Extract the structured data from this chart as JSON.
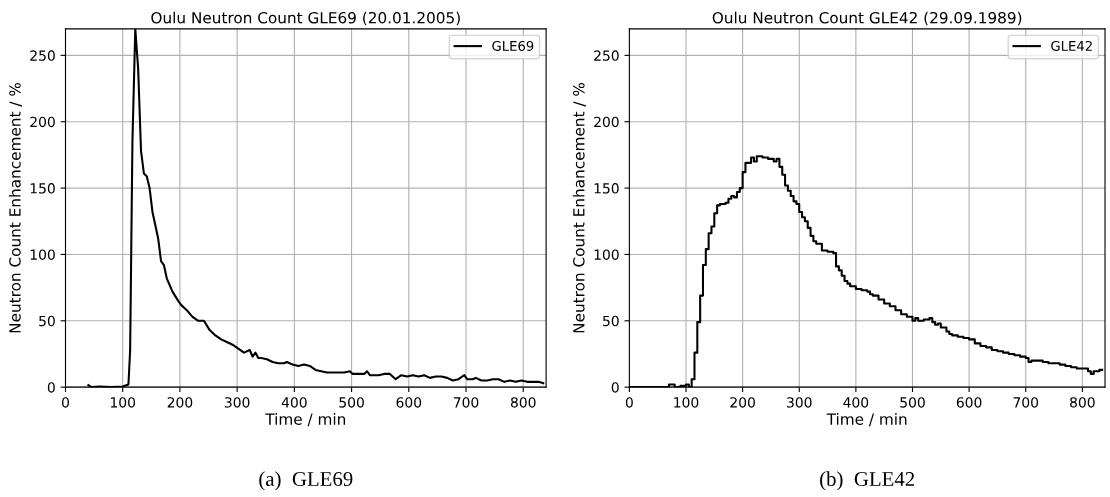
{
  "chart_data": [
    {
      "type": "line",
      "title": "Oulu Neutron Count GLE69 (20.01.2005)",
      "xlabel": "Time / min",
      "ylabel": "Neutron Count Enhancement / %",
      "xlim": [
        0,
        840
      ],
      "ylim": [
        0,
        270
      ],
      "xticks": [
        0,
        100,
        200,
        300,
        400,
        500,
        600,
        700,
        800
      ],
      "yticks": [
        0,
        50,
        100,
        150,
        200,
        250
      ],
      "grid": true,
      "legend": "top right",
      "annotations": [
        "(a)  GLE69"
      ],
      "series": [
        {
          "name": "GLE69",
          "color": "#000000",
          "x": [
            40,
            45,
            60,
            80,
            100,
            110,
            113,
            117,
            122,
            127,
            132,
            137,
            142,
            147,
            152,
            162,
            167,
            172,
            177,
            187,
            197,
            202,
            212,
            222,
            232,
            242,
            252,
            262,
            272,
            282,
            292,
            302,
            312,
            322,
            327,
            332,
            337,
            342,
            352,
            362,
            372,
            382,
            387,
            397,
            407,
            417,
            427,
            437,
            447,
            457,
            467,
            477,
            487,
            497,
            502,
            512,
            522,
            527,
            532,
            547,
            557,
            567,
            577,
            587,
            597,
            607,
            617,
            627,
            637,
            647,
            657,
            667,
            677,
            687,
            697,
            702,
            712,
            717,
            727,
            737,
            747,
            757,
            767,
            777,
            787,
            797,
            807,
            817,
            827,
            835
          ],
          "values": [
            1.5,
            0,
            0.5,
            0,
            0.5,
            2,
            28,
            185,
            270,
            240,
            178,
            161,
            159,
            150,
            132,
            112,
            95,
            92,
            82,
            72,
            65,
            62,
            58,
            53,
            50,
            50,
            43,
            39,
            36,
            34,
            32,
            29,
            26,
            28,
            23,
            26,
            22,
            22,
            21,
            19,
            18,
            18,
            19,
            17,
            16,
            17,
            16,
            13,
            12,
            11,
            11,
            11,
            11,
            12,
            10,
            10,
            10,
            12,
            9,
            9,
            10,
            10,
            6,
            9,
            8,
            9,
            8,
            9,
            7,
            8,
            8,
            7,
            5,
            6,
            9,
            6,
            6,
            7,
            5,
            5,
            6,
            6,
            4,
            5,
            4,
            5,
            4,
            4,
            4,
            3
          ]
        }
      ]
    },
    {
      "type": "step",
      "title": "Oulu Neutron Count GLE42 (29.09.1989)",
      "xlabel": "Time / min",
      "ylabel": "Neutron Count Enhancement / %",
      "xlim": [
        0,
        840
      ],
      "ylim": [
        0,
        270
      ],
      "xticks": [
        0,
        100,
        200,
        300,
        400,
        500,
        600,
        700,
        800
      ],
      "yticks": [
        0,
        50,
        100,
        150,
        200,
        250
      ],
      "grid": true,
      "legend": "top right",
      "annotations": [
        "(b)  GLE42"
      ],
      "series": [
        {
          "name": "GLE42",
          "color": "#000000",
          "x": [
            0,
            10,
            20,
            30,
            40,
            50,
            60,
            70,
            80,
            90,
            100,
            105,
            110,
            115,
            120,
            125,
            130,
            135,
            140,
            145,
            150,
            155,
            160,
            170,
            175,
            180,
            185,
            190,
            195,
            200,
            205,
            215,
            220,
            225,
            235,
            245,
            255,
            260,
            265,
            270,
            275,
            280,
            285,
            290,
            295,
            300,
            305,
            310,
            315,
            320,
            325,
            330,
            340,
            350,
            360,
            365,
            370,
            375,
            380,
            385,
            390,
            400,
            410,
            420,
            425,
            430,
            440,
            450,
            460,
            470,
            480,
            490,
            500,
            505,
            510,
            520,
            530,
            535,
            540,
            545,
            550,
            560,
            565,
            570,
            580,
            590,
            600,
            610,
            620,
            630,
            640,
            650,
            660,
            670,
            680,
            690,
            700,
            705,
            710,
            720,
            730,
            740,
            750,
            760,
            770,
            780,
            790,
            800,
            810,
            815,
            820,
            830,
            835
          ],
          "values": [
            0,
            0,
            0,
            0,
            0,
            0,
            0,
            2,
            0,
            1,
            2,
            0,
            6,
            26,
            49,
            69,
            92,
            104,
            116,
            121,
            131,
            137,
            138,
            139,
            142,
            144,
            143,
            147,
            150,
            162,
            169,
            173,
            170,
            174,
            173,
            172,
            170,
            172,
            166,
            160,
            152,
            148,
            144,
            140,
            138,
            132,
            128,
            125,
            120,
            114,
            110,
            108,
            103,
            102,
            101,
            91,
            88,
            84,
            80,
            78,
            76,
            74,
            73,
            72,
            70,
            69,
            66,
            63,
            61,
            58,
            55,
            53,
            50,
            52,
            50,
            51,
            52,
            49,
            47,
            48,
            45,
            42,
            40,
            39,
            38,
            37,
            36,
            33,
            31,
            30,
            28,
            27,
            26,
            25,
            24,
            23,
            22,
            19,
            20,
            20,
            19,
            18,
            18,
            17,
            16,
            15,
            14,
            14,
            12,
            10,
            12,
            13,
            13
          ]
        }
      ]
    }
  ]
}
